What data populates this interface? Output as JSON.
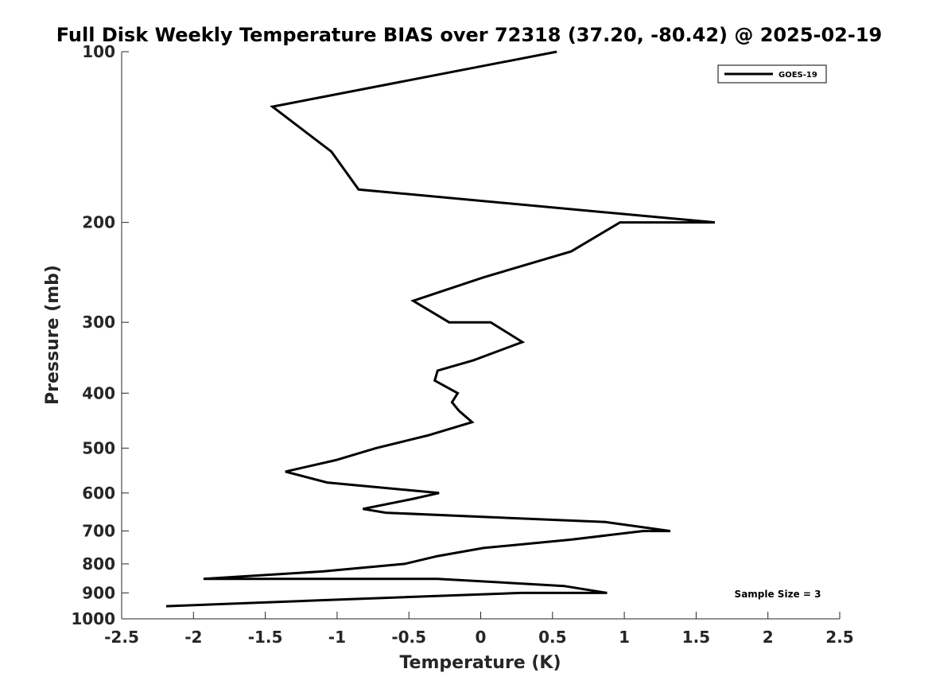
{
  "chart_data": {
    "type": "line",
    "title": "Full Disk Weekly Temperature BIAS over 72318 (37.20, -80.42) @ 2025-02-19",
    "xlabel": "Temperature (K)",
    "ylabel": "Pressure (mb)",
    "xlim": [
      -2.5,
      2.5
    ],
    "ylim": [
      100,
      1000
    ],
    "y_scale": "log",
    "y_reversed": true,
    "x_ticks": [
      "-2.5",
      "-2",
      "-1.5",
      "-1",
      "-0.5",
      "0",
      "0.5",
      "1",
      "1.5",
      "2",
      "2.5"
    ],
    "y_ticks": [
      "100",
      "200",
      "300",
      "400",
      "500",
      "600",
      "700",
      "800",
      "900",
      "1000"
    ],
    "grid": false,
    "legend_position": "top-right",
    "annotation": "Sample Size = 3",
    "series": [
      {
        "name": "GOES-19",
        "color": "#000000",
        "points": [
          {
            "x": 0.53,
            "p": 100
          },
          {
            "x": -1.45,
            "p": 125
          },
          {
            "x": -1.04,
            "p": 150
          },
          {
            "x": -0.85,
            "p": 175
          },
          {
            "x": 1.63,
            "p": 200
          },
          {
            "x": 0.97,
            "p": 200
          },
          {
            "x": 0.63,
            "p": 225
          },
          {
            "x": 0.02,
            "p": 250
          },
          {
            "x": -0.47,
            "p": 275
          },
          {
            "x": -0.22,
            "p": 300
          },
          {
            "x": 0.07,
            "p": 300
          },
          {
            "x": 0.29,
            "p": 325
          },
          {
            "x": -0.05,
            "p": 350
          },
          {
            "x": -0.3,
            "p": 365
          },
          {
            "x": -0.32,
            "p": 380
          },
          {
            "x": -0.16,
            "p": 400
          },
          {
            "x": -0.2,
            "p": 415
          },
          {
            "x": -0.15,
            "p": 430
          },
          {
            "x": -0.06,
            "p": 450
          },
          {
            "x": -0.37,
            "p": 475
          },
          {
            "x": -0.73,
            "p": 500
          },
          {
            "x": -1.01,
            "p": 525
          },
          {
            "x": -1.36,
            "p": 550
          },
          {
            "x": -1.07,
            "p": 575
          },
          {
            "x": -0.29,
            "p": 600
          },
          {
            "x": -0.48,
            "p": 615
          },
          {
            "x": -0.82,
            "p": 640
          },
          {
            "x": -0.66,
            "p": 650
          },
          {
            "x": 0.87,
            "p": 675
          },
          {
            "x": 1.32,
            "p": 700
          },
          {
            "x": 1.13,
            "p": 700
          },
          {
            "x": 0.63,
            "p": 725
          },
          {
            "x": 0.02,
            "p": 750
          },
          {
            "x": -0.3,
            "p": 775
          },
          {
            "x": -0.53,
            "p": 800
          },
          {
            "x": -1.1,
            "p": 825
          },
          {
            "x": -1.93,
            "p": 850
          },
          {
            "x": -0.3,
            "p": 850
          },
          {
            "x": 0.58,
            "p": 875
          },
          {
            "x": 0.88,
            "p": 900
          },
          {
            "x": 0.28,
            "p": 900
          },
          {
            "x": -1.0,
            "p": 925
          },
          {
            "x": -2.19,
            "p": 950
          }
        ]
      }
    ]
  }
}
